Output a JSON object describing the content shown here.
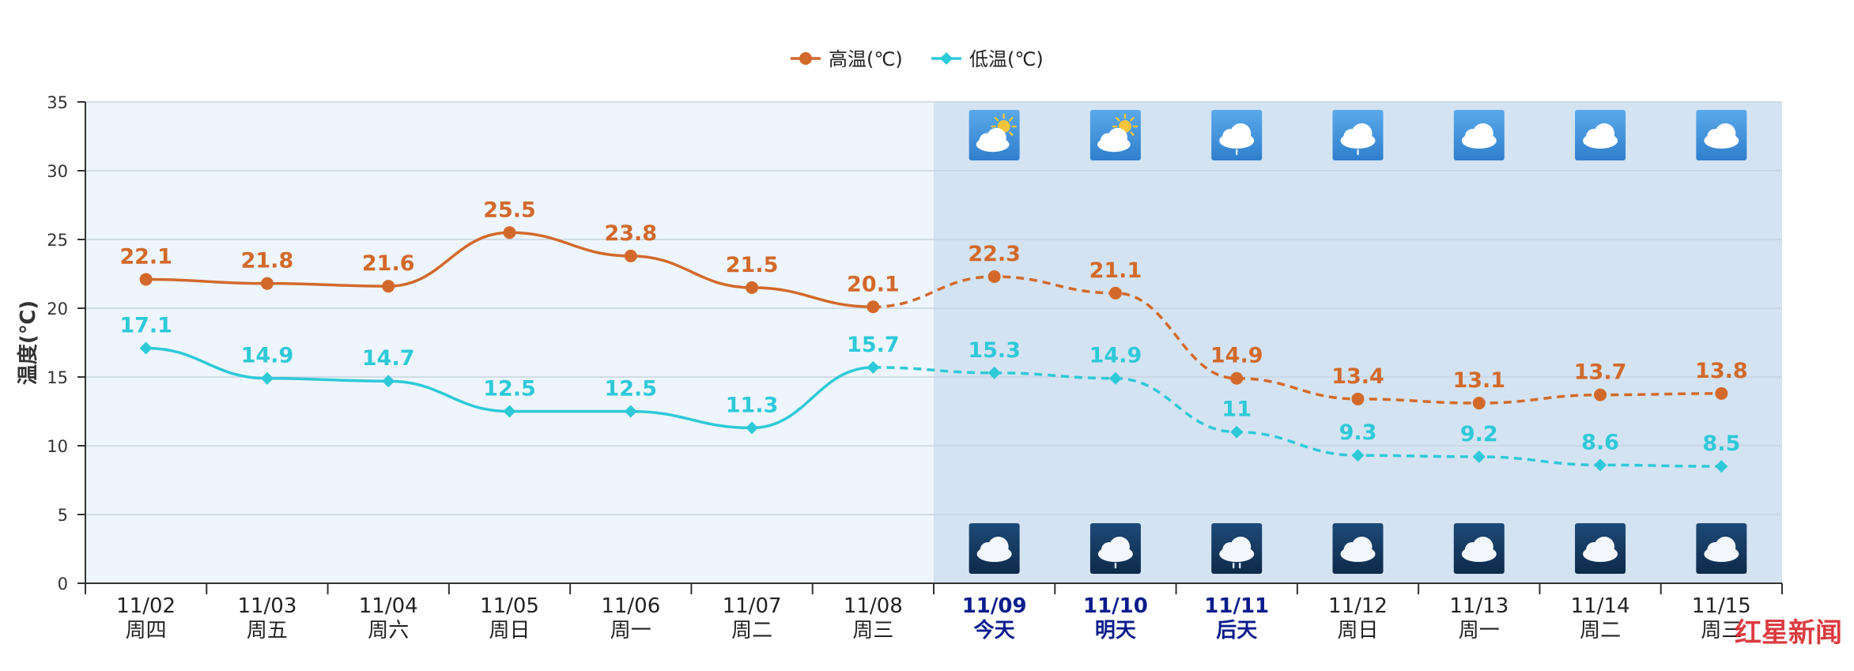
{
  "chart_data": {
    "type": "line",
    "ylabel": "温度(℃)",
    "ylim": [
      0,
      35
    ],
    "yticks": [
      0,
      5,
      10,
      15,
      20,
      25,
      30,
      35
    ],
    "grid": true,
    "legend_position": "top-center",
    "dates": [
      "11/02",
      "11/03",
      "11/04",
      "11/05",
      "11/06",
      "11/07",
      "11/08",
      "11/09",
      "11/10",
      "11/11",
      "11/12",
      "11/13",
      "11/14",
      "11/15"
    ],
    "weekdays": [
      "周四",
      "周五",
      "周六",
      "周日",
      "周一",
      "周二",
      "周三",
      "今天",
      "明天",
      "后天",
      "周日",
      "周一",
      "周二",
      "周三"
    ],
    "forecast_start_index": 7,
    "highlight_indices": [
      7,
      8,
      9
    ],
    "series": [
      {
        "name": "高温(℃)",
        "color": "#d2692a",
        "marker": "circle",
        "values": [
          22.1,
          21.8,
          21.6,
          25.5,
          23.8,
          21.5,
          20.1,
          22.3,
          21.1,
          14.9,
          13.4,
          13.1,
          13.7,
          13.8
        ]
      },
      {
        "name": "低温(℃)",
        "color": "#2ec9d8",
        "marker": "diamond",
        "values": [
          17.1,
          14.9,
          14.7,
          12.5,
          12.5,
          11.3,
          15.7,
          15.3,
          14.9,
          11,
          9.3,
          9.2,
          8.6,
          8.5
        ]
      }
    ],
    "day_weather_icons": [
      "partly-cloudy-icon",
      "partly-cloudy-icon",
      "cloud-drizzle-icon",
      "cloud-drizzle-icon",
      "cloud-icon",
      "cloud-icon",
      "cloud-icon"
    ],
    "night_weather_icons": [
      "cloud-icon",
      "cloud-drizzle-icon",
      "cloud-rain-icon",
      "cloud-icon",
      "cloud-icon",
      "cloud-icon",
      "cloud-icon"
    ]
  },
  "watermark": {
    "text": "红星新闻"
  },
  "colors": {
    "history_bg": "#eef5fc",
    "forecast_bg": "#d4e3f2",
    "grid": "#c6d3de",
    "axis": "#333333",
    "highlight_label": "#0b1c8c",
    "normal_label": "#222222",
    "day_icon_bg": "#4a9ce0",
    "night_icon_bg": "#14365c"
  }
}
